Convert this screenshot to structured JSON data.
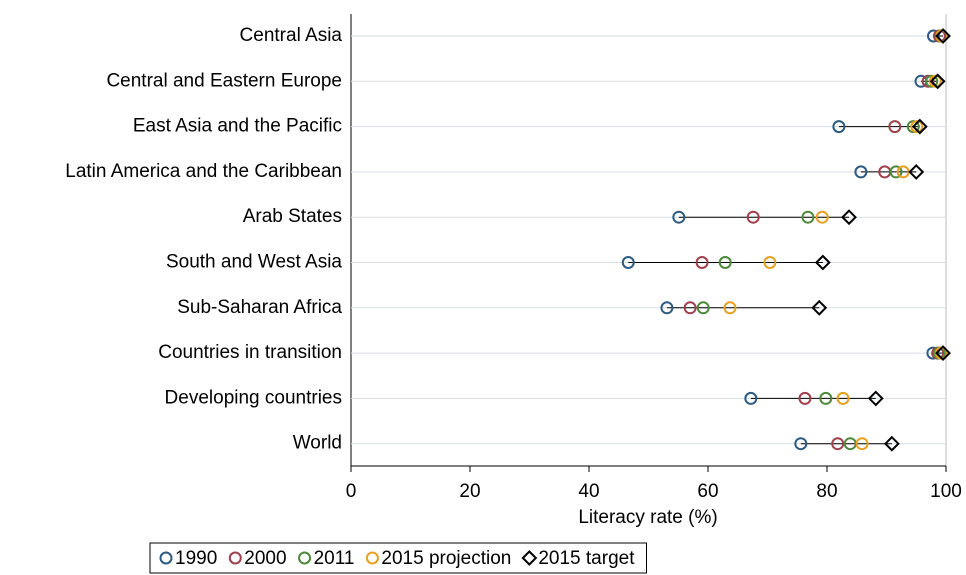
{
  "chart_data": {
    "type": "dot",
    "categories": [
      "Central Asia",
      "Central and Eastern Europe",
      "East Asia and the Pacific",
      "Latin America and the Caribbean",
      "Arab States",
      "South and West Asia",
      "Sub-Saharan Africa",
      "Countries in transition",
      "Developing countries",
      "World"
    ],
    "series": [
      {
        "name": "1990",
        "color": "#2e5b82",
        "marker": "circle",
        "values": [
          97.9,
          95.8,
          82.0,
          85.7,
          55.1,
          46.6,
          53.1,
          97.8,
          67.2,
          75.6
        ]
      },
      {
        "name": "2000",
        "color": "#a0404c",
        "marker": "circle",
        "values": [
          98.9,
          97.0,
          91.4,
          89.7,
          67.6,
          59.0,
          57.0,
          98.6,
          76.3,
          81.8
        ]
      },
      {
        "name": "2011",
        "color": "#4e8a3a",
        "marker": "circle",
        "values": [
          99.2,
          97.6,
          94.5,
          91.6,
          76.8,
          62.9,
          59.2,
          98.9,
          79.8,
          83.9
        ]
      },
      {
        "name": "2015 projection",
        "color": "#e8a020",
        "marker": "circle",
        "values": [
          99.3,
          98.2,
          95.1,
          92.8,
          79.2,
          70.4,
          63.7,
          99.2,
          82.7,
          85.9
        ]
      },
      {
        "name": "2015 target",
        "color": "#000000",
        "marker": "diamond",
        "values": [
          99.5,
          98.6,
          95.6,
          95.0,
          83.7,
          79.3,
          78.7,
          99.5,
          88.2,
          90.9
        ]
      }
    ],
    "xlabel": "Literacy rate (%)",
    "xlim": [
      0,
      100
    ],
    "xticks": [
      0,
      20,
      40,
      60,
      80,
      100
    ],
    "grid": true,
    "legend": "bottom"
  }
}
